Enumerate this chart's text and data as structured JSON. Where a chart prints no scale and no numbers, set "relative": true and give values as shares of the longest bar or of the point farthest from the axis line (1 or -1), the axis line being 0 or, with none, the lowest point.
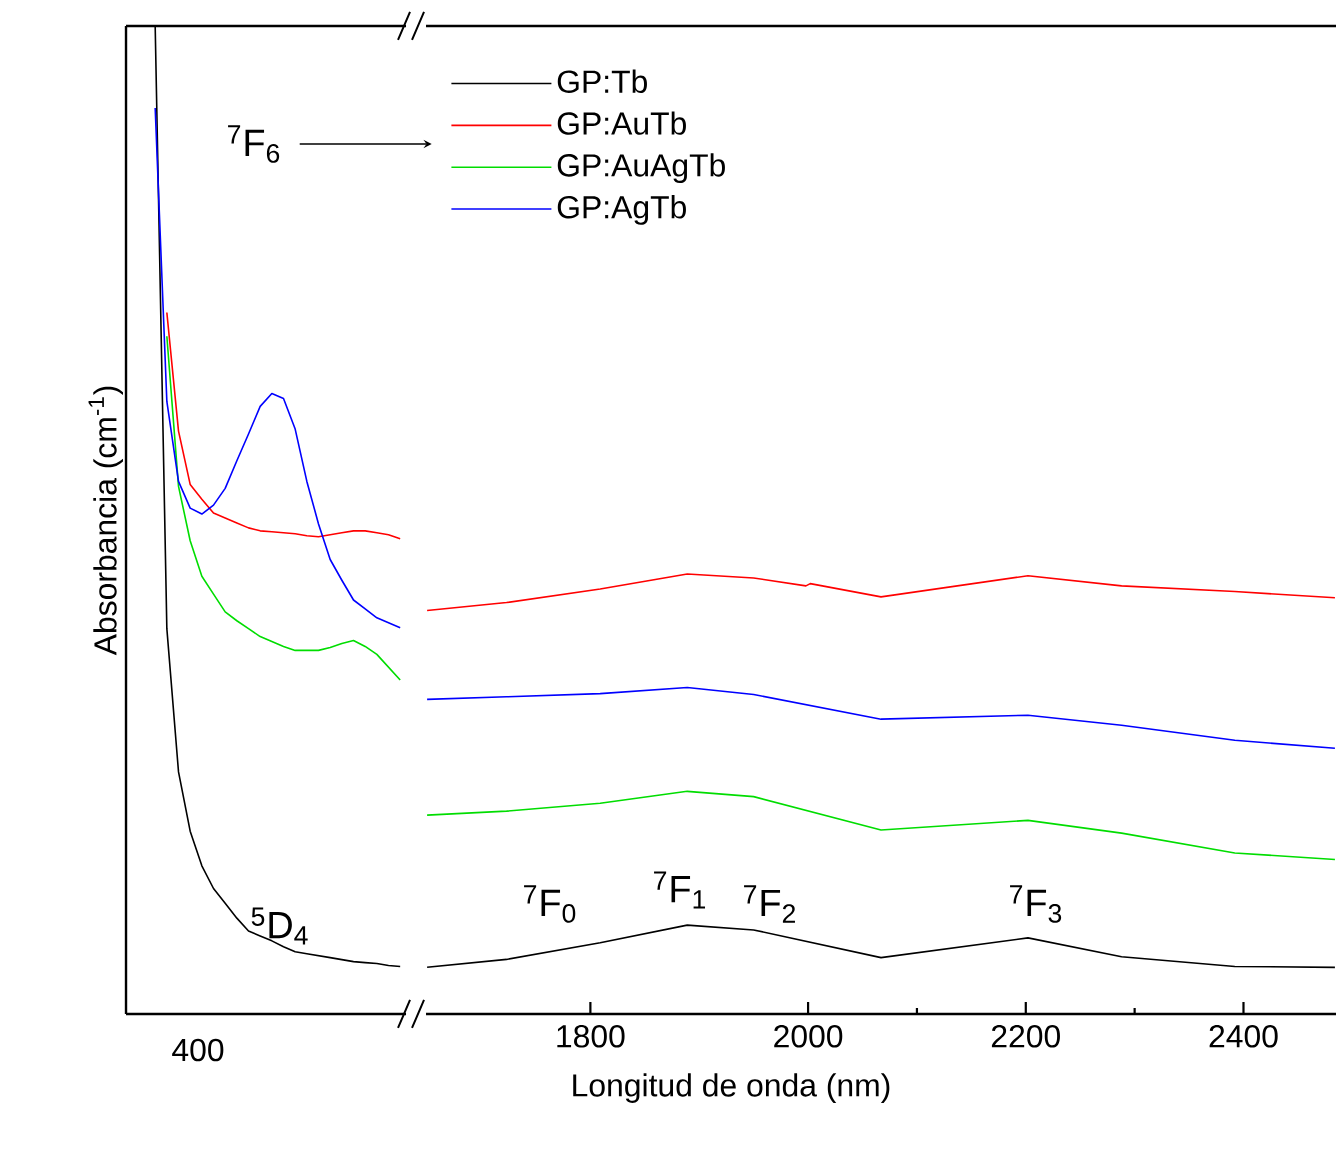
{
  "chart_data": [
    {
      "type": "line",
      "relative": true,
      "tick_labels": false,
      "ylabel": "Absorbancia (cm$^{-1}$)",
      "categories": [
        null,
        null,
        null,
        null,
        null,
        null,
        null,
        null,
        null,
        null,
        null,
        null,
        null,
        null,
        null,
        null,
        null,
        null,
        null,
        null,
        null,
        null,
        null,
        null
      ],
      "series": [
        {
          "color": "#000000",
          "values": [
            null,
            null,
            1.0,
            0.39,
            0.245,
            0.185,
            0.15,
            0.127,
            0.112,
            0.097,
            0.084,
            0.079,
            0.074,
            0.068,
            0.063,
            0.061,
            0.059,
            0.057,
            0.055,
            0.053,
            0.052,
            0.051,
            0.049,
            0.048
          ]
        },
        {
          "color": "#ff0000",
          "values": [
            null,
            null,
            null,
            0.71,
            0.59,
            0.536,
            0.521,
            0.507,
            0.502,
            0.497,
            0.492,
            0.489,
            0.488,
            0.487,
            0.486,
            0.484,
            0.483,
            0.485,
            0.487,
            0.489,
            0.489,
            0.487,
            0.485,
            0.481
          ]
        },
        {
          "color": "#00dd00",
          "values": [
            null,
            null,
            null,
            0.686,
            0.534,
            0.479,
            0.443,
            0.425,
            0.407,
            0.398,
            0.39,
            0.382,
            0.377,
            0.372,
            0.368,
            0.368,
            0.368,
            0.371,
            0.375,
            0.378,
            0.372,
            0.364,
            0.351,
            0.338
          ]
        },
        {
          "color": "#0000ff",
          "values": [
            null,
            null,
            0.917,
            0.62,
            0.539,
            0.512,
            0.506,
            0.515,
            0.532,
            0.56,
            0.587,
            0.615,
            0.628,
            0.623,
            0.592,
            0.539,
            0.496,
            0.46,
            0.439,
            0.419,
            0.41,
            0.401,
            0.396,
            0.391
          ]
        }
      ],
      "annotations": [
        "400",
        "$^{5}$D$_{4}$",
        "$^{7}$F$_{6}$"
      ]
    },
    {
      "type": "line",
      "relative": true,
      "xlim": [
        1649,
        2485
      ],
      "xticks": [
        1800,
        2000,
        {
          "value": 2100,
          "label": null
        },
        2200,
        {
          "value": 2300,
          "label": null
        },
        2400
      ],
      "xlabel": "Longitud de onda (nm)",
      "tick_labels": "x",
      "legend": "top left",
      "series": [
        {
          "name": "GP:Tb",
          "color": "#000000",
          "x": [
            1650,
            1723,
            1809,
            1889,
            1950,
            2067,
            2202,
            2288,
            2392,
            2484
          ],
          "values": [
            0.106,
            0.124,
            0.162,
            0.202,
            0.191,
            0.128,
            0.173,
            0.13,
            0.108,
            0.106
          ]
        },
        {
          "name": "GP:AuTb",
          "color": "#ff0000",
          "x": [
            1650,
            1723,
            1809,
            1889,
            1950,
            1998,
            2002,
            2067,
            2202,
            2288,
            2392,
            2484
          ],
          "values": [
            0.917,
            0.935,
            0.966,
            1.0,
            0.991,
            0.973,
            0.978,
            0.948,
            0.996,
            0.973,
            0.96,
            0.946
          ]
        },
        {
          "name": "GP:AuAgTb",
          "color": "#00dd00",
          "x": [
            1650,
            1723,
            1809,
            1889,
            1950,
            2067,
            2202,
            2288,
            2392,
            2484
          ],
          "values": [
            0.452,
            0.461,
            0.479,
            0.506,
            0.494,
            0.418,
            0.44,
            0.411,
            0.366,
            0.351
          ]
        },
        {
          "name": "GP:AgTb",
          "color": "#0000ff",
          "x": [
            1650,
            1723,
            1809,
            1889,
            1950,
            2067,
            2202,
            2288,
            2392,
            2484
          ],
          "values": [
            0.715,
            0.721,
            0.728,
            0.742,
            0.726,
            0.67,
            0.679,
            0.656,
            0.622,
            0.604
          ]
        }
      ],
      "annotations": [
        "$^{7}$F$_{0}$",
        "$^{7}$F$_{1}$",
        "$^{7}$F$_{2}$",
        "$^{7}$F$_{3}$"
      ]
    }
  ]
}
